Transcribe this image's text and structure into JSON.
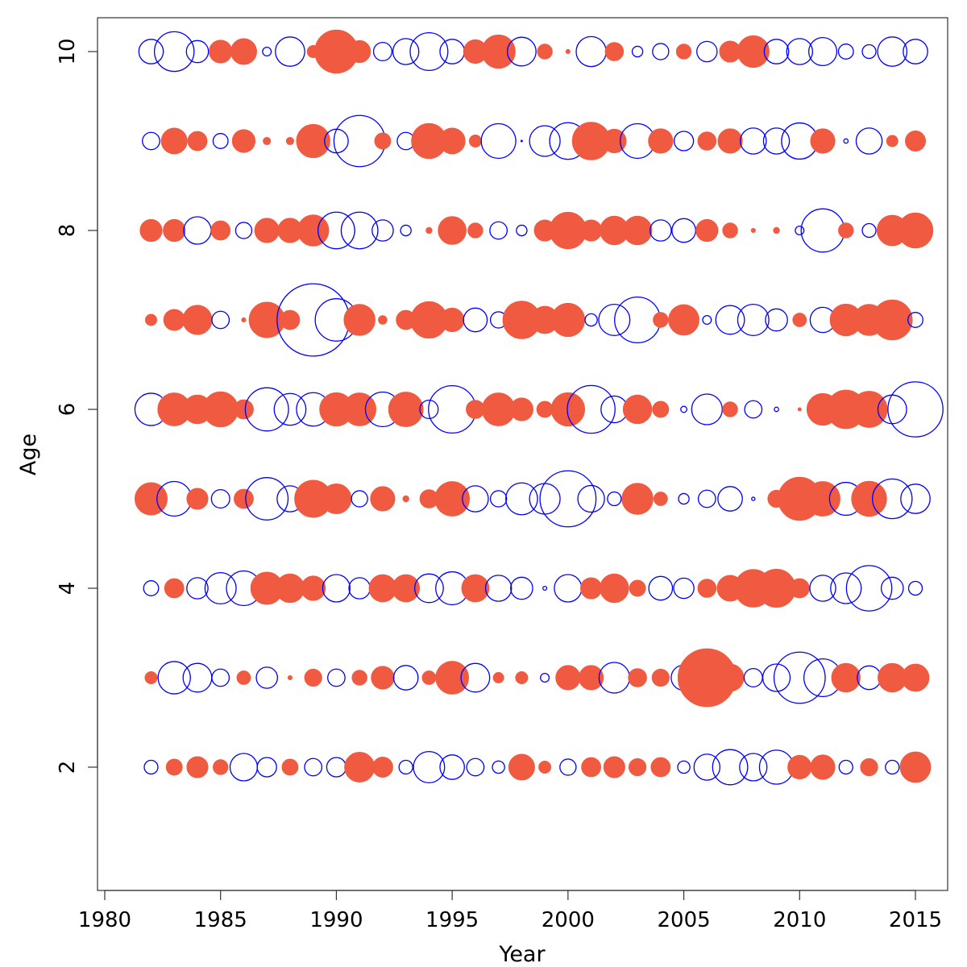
{
  "chart_data": {
    "type": "scatter",
    "xlabel": "Year",
    "ylabel": "Age",
    "xlim": [
      1980,
      2015.5
    ],
    "ylim": [
      0.8,
      10.5
    ],
    "x_ticks": [
      "1980",
      "1985",
      "1990",
      "1995",
      "2000",
      "2005",
      "2010",
      "2015"
    ],
    "y_ticks": [
      "2",
      "4",
      "6",
      "8",
      "10"
    ],
    "grid": false,
    "legend": "none",
    "years": [
      1982,
      1983,
      1984,
      1985,
      1986,
      1987,
      1988,
      1989,
      1990,
      1991,
      1992,
      1993,
      1994,
      1995,
      1996,
      1997,
      1998,
      1999,
      2000,
      2001,
      2002,
      2003,
      2004,
      2005,
      2006,
      2007,
      2008,
      2009,
      2010,
      2011,
      2012,
      2013,
      2014,
      2015
    ],
    "ages": [
      2,
      3,
      4,
      5,
      6,
      7,
      8,
      9,
      10
    ],
    "colors": {
      "positive": "#0000ff",
      "negative": "#ef5a40"
    },
    "encoding": "bubble radius proportional to sqrt(|residual|); positive = open blue circle, negative = filled red circle",
    "residuals": {
      "2": [
        0.5,
        -0.7,
        -1.2,
        -0.6,
        2.0,
        1.0,
        -0.7,
        0.8,
        1.0,
        -2.4,
        -1.1,
        0.5,
        2.6,
        1.6,
        0.8,
        0.4,
        -1.8,
        -0.4,
        0.7,
        -1.0,
        -1.2,
        -0.8,
        -1.0,
        0.4,
        1.8,
        3.3,
        2.0,
        3.1,
        -1.5,
        -1.6,
        0.5,
        -0.8,
        0.5,
        -2.5
      ],
      "3": [
        -0.4,
        2.8,
        2.2,
        0.8,
        -0.5,
        1.2,
        -0.05,
        -0.8,
        0.8,
        -0.6,
        -1.4,
        1.6,
        -0.5,
        -2.9,
        2.2,
        -0.3,
        -0.4,
        0.2,
        -1.6,
        -1.6,
        2.5,
        -0.9,
        -0.8,
        1.7,
        -9.0,
        -2.0,
        0.9,
        2.0,
        7.0,
        3.8,
        -2.2,
        1.5,
        -2.2,
        -2.0
      ],
      "4": [
        0.6,
        -1.0,
        1.2,
        2.6,
        3.2,
        -2.8,
        -2.2,
        -1.6,
        2.0,
        1.2,
        -2.0,
        -2.0,
        2.2,
        2.9,
        -2.0,
        1.8,
        1.3,
        0.04,
        2.0,
        -1.2,
        -2.2,
        -0.7,
        1.5,
        1.1,
        -0.9,
        -1.8,
        -3.8,
        -3.9,
        -1.0,
        1.8,
        2.5,
        5.5,
        1.3,
        0.5
      ],
      "5": [
        -2.8,
        3.2,
        -1.2,
        0.9,
        -1.0,
        4.8,
        1.8,
        -3.7,
        -2.4,
        0.7,
        -1.6,
        -0.1,
        -0.9,
        -3.2,
        1.8,
        0.7,
        2.7,
        2.5,
        8.4,
        1.9,
        0.5,
        -2.6,
        -0.5,
        0.3,
        0.8,
        1.6,
        0.03,
        -0.8,
        -5.0,
        -3.2,
        2.9,
        -3.3,
        4.2,
        2.3
      ],
      "6": [
        2.8,
        -2.9,
        -2.2,
        -3.3,
        -1.0,
        5.0,
        2.7,
        3.0,
        -3.0,
        -2.9,
        3.2,
        -3.2,
        0.9,
        6.0,
        -0.9,
        -2.9,
        -1.4,
        -0.7,
        -3.0,
        6.1,
        1.9,
        -2.2,
        -0.7,
        0.1,
        2.5,
        -0.6,
        0.8,
        0.05,
        -0.03,
        -2.7,
        -4.0,
        -3.5,
        2.2,
        8.1
      ],
      "7": [
        -0.35,
        -1.2,
        -2.3,
        0.8,
        -0.05,
        -3.4,
        -1.0,
        14.0,
        4.8,
        -2.6,
        -0.2,
        -1.0,
        -3.6,
        -1.5,
        1.5,
        0.7,
        -3.8,
        -2.0,
        -3.0,
        0.4,
        2.6,
        5.6,
        -0.6,
        -2.5,
        0.2,
        2.2,
        2.6,
        1.3,
        -0.5,
        1.7,
        -2.7,
        -2.6,
        -4.3,
        0.6
      ],
      "8": [
        -1.3,
        -1.3,
        2.0,
        -1.0,
        0.7,
        -1.6,
        -1.6,
        -2.6,
        3.6,
        3.6,
        1.2,
        0.3,
        -0.1,
        -2.1,
        -0.6,
        0.8,
        0.3,
        -1.2,
        -3.6,
        -1.2,
        -2.2,
        -2.2,
        1.2,
        1.5,
        -1.3,
        -0.6,
        -0.05,
        -0.1,
        0.2,
        5.0,
        -0.6,
        0.5,
        -2.5,
        -3.3
      ],
      "9": [
        0.8,
        -1.8,
        -1.0,
        0.6,
        -1.4,
        -0.15,
        -0.15,
        -3.0,
        1.5,
        7.0,
        -0.7,
        0.8,
        -3.3,
        -1.8,
        -0.4,
        3.2,
        0.0,
        2.5,
        3.6,
        -3.8,
        -1.5,
        3.2,
        -1.6,
        1.0,
        -0.9,
        -1.6,
        1.8,
        1.8,
        3.5,
        -1.6,
        0.05,
        1.8,
        -0.35,
        -1.1
      ],
      "10": [
        1.6,
        4.2,
        1.3,
        -1.4,
        -1.8,
        0.2,
        2.3,
        -0.4,
        -5.0,
        -1.3,
        0.9,
        1.8,
        3.8,
        1.6,
        -1.5,
        -3.0,
        2.2,
        -0.6,
        -0.05,
        2.4,
        -0.9,
        0.3,
        0.7,
        -0.6,
        1.1,
        -1.2,
        -2.7,
        1.6,
        1.8,
        2.1,
        0.6,
        0.5,
        2.3,
        1.6
      ]
    }
  }
}
